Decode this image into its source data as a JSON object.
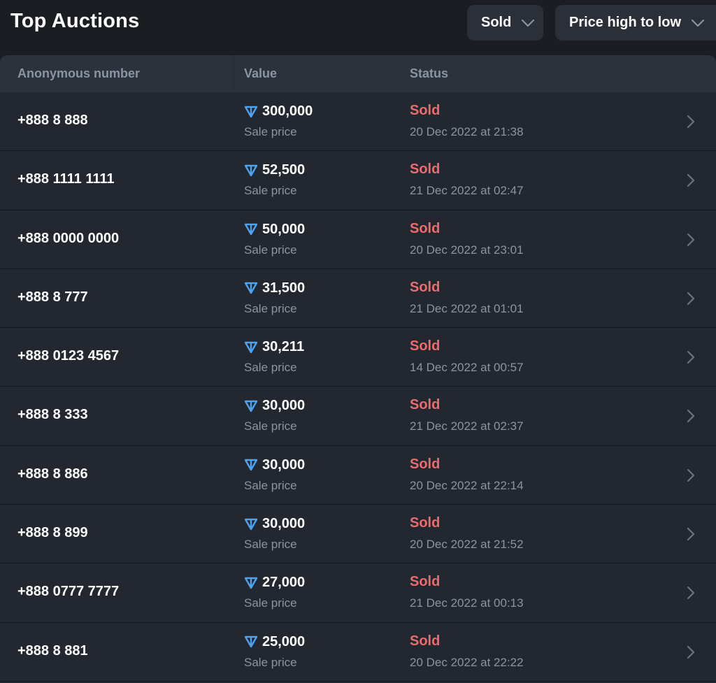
{
  "header": {
    "title": "Top Auctions",
    "filter_label": "Sold",
    "sort_label": "Price high to low"
  },
  "table": {
    "columns": [
      "Anonymous number",
      "Value",
      "Status"
    ],
    "rows": [
      {
        "number": "+888 8 888",
        "value": "300,000",
        "value_sub": "Sale price",
        "status": "Sold",
        "date": "20 Dec 2022 at 21:38"
      },
      {
        "number": "+888 1111 1111",
        "value": "52,500",
        "value_sub": "Sale price",
        "status": "Sold",
        "date": "21 Dec 2022 at 02:47"
      },
      {
        "number": "+888 0000 0000",
        "value": "50,000",
        "value_sub": "Sale price",
        "status": "Sold",
        "date": "20 Dec 2022 at 23:01"
      },
      {
        "number": "+888 8 777",
        "value": "31,500",
        "value_sub": "Sale price",
        "status": "Sold",
        "date": "21 Dec 2022 at 01:01"
      },
      {
        "number": "+888 0123 4567",
        "value": "30,211",
        "value_sub": "Sale price",
        "status": "Sold",
        "date": "14 Dec 2022 at 00:57"
      },
      {
        "number": "+888 8 333",
        "value": "30,000",
        "value_sub": "Sale price",
        "status": "Sold",
        "date": "21 Dec 2022 at 02:37"
      },
      {
        "number": "+888 8 886",
        "value": "30,000",
        "value_sub": "Sale price",
        "status": "Sold",
        "date": "20 Dec 2022 at 22:14"
      },
      {
        "number": "+888 8 899",
        "value": "30,000",
        "value_sub": "Sale price",
        "status": "Sold",
        "date": "20 Dec 2022 at 21:52"
      },
      {
        "number": "+888 0777 7777",
        "value": "27,000",
        "value_sub": "Sale price",
        "status": "Sold",
        "date": "21 Dec 2022 at 00:13"
      },
      {
        "number": "+888 8 881",
        "value": "25,000",
        "value_sub": "Sale price",
        "status": "Sold",
        "date": "20 Dec 2022 at 22:22"
      }
    ]
  },
  "icons": {
    "currency": "ton-icon",
    "dropdown": "chevron-down-icon",
    "row_action": "chevron-right-icon"
  },
  "colors": {
    "background": "#1a1d22",
    "table_bg": "#232830",
    "header_bg": "#2c323b",
    "sold": "#ec6b6e",
    "ton": "#4da3f0",
    "muted": "#8b94a1"
  }
}
